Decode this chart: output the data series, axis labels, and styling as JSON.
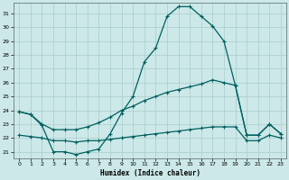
{
  "xlabel": "Humidex (Indice chaleur)",
  "xlim": [
    -0.5,
    23.5
  ],
  "ylim": [
    20.5,
    31.8
  ],
  "yticks": [
    21,
    22,
    23,
    24,
    25,
    26,
    27,
    28,
    29,
    30,
    31
  ],
  "xticks": [
    0,
    1,
    2,
    3,
    4,
    5,
    6,
    7,
    8,
    9,
    10,
    11,
    12,
    13,
    14,
    15,
    16,
    17,
    18,
    19,
    20,
    21,
    22,
    23
  ],
  "background_color": "#cce8e8",
  "grid_color": "#aacccc",
  "line_color": "#006060",
  "main_x": [
    0,
    1,
    2,
    3,
    4,
    5,
    6,
    7,
    8,
    9,
    10,
    11,
    12,
    13,
    14,
    15,
    16,
    17,
    18,
    19,
    20,
    21,
    22,
    23
  ],
  "main_y": [
    23.9,
    23.7,
    22.9,
    21.0,
    21.0,
    20.8,
    21.0,
    21.2,
    22.3,
    23.8,
    25.0,
    27.5,
    28.5,
    30.8,
    31.5,
    31.5,
    30.8,
    30.1,
    29.0,
    25.8,
    22.2,
    22.2,
    23.0,
    22.3
  ],
  "upper_x": [
    0,
    1,
    2,
    3,
    4,
    5,
    6,
    7,
    8,
    9,
    10,
    11,
    12,
    13,
    14,
    15,
    16,
    17,
    18,
    19,
    20,
    21,
    22,
    23
  ],
  "upper_y": [
    23.9,
    23.7,
    23.0,
    22.6,
    22.6,
    22.6,
    22.8,
    23.1,
    23.5,
    24.0,
    24.3,
    24.7,
    25.0,
    25.3,
    25.5,
    25.7,
    25.9,
    26.2,
    26.0,
    25.8,
    22.2,
    22.2,
    23.0,
    22.3
  ],
  "lower_x": [
    0,
    1,
    2,
    3,
    4,
    5,
    6,
    7,
    8,
    9,
    10,
    11,
    12,
    13,
    14,
    15,
    16,
    17,
    18,
    19,
    20,
    21,
    22,
    23
  ],
  "lower_y": [
    22.2,
    22.1,
    22.0,
    21.8,
    21.8,
    21.7,
    21.8,
    21.8,
    21.9,
    22.0,
    22.1,
    22.2,
    22.3,
    22.4,
    22.5,
    22.6,
    22.7,
    22.8,
    22.8,
    22.8,
    21.8,
    21.8,
    22.2,
    22.0
  ]
}
